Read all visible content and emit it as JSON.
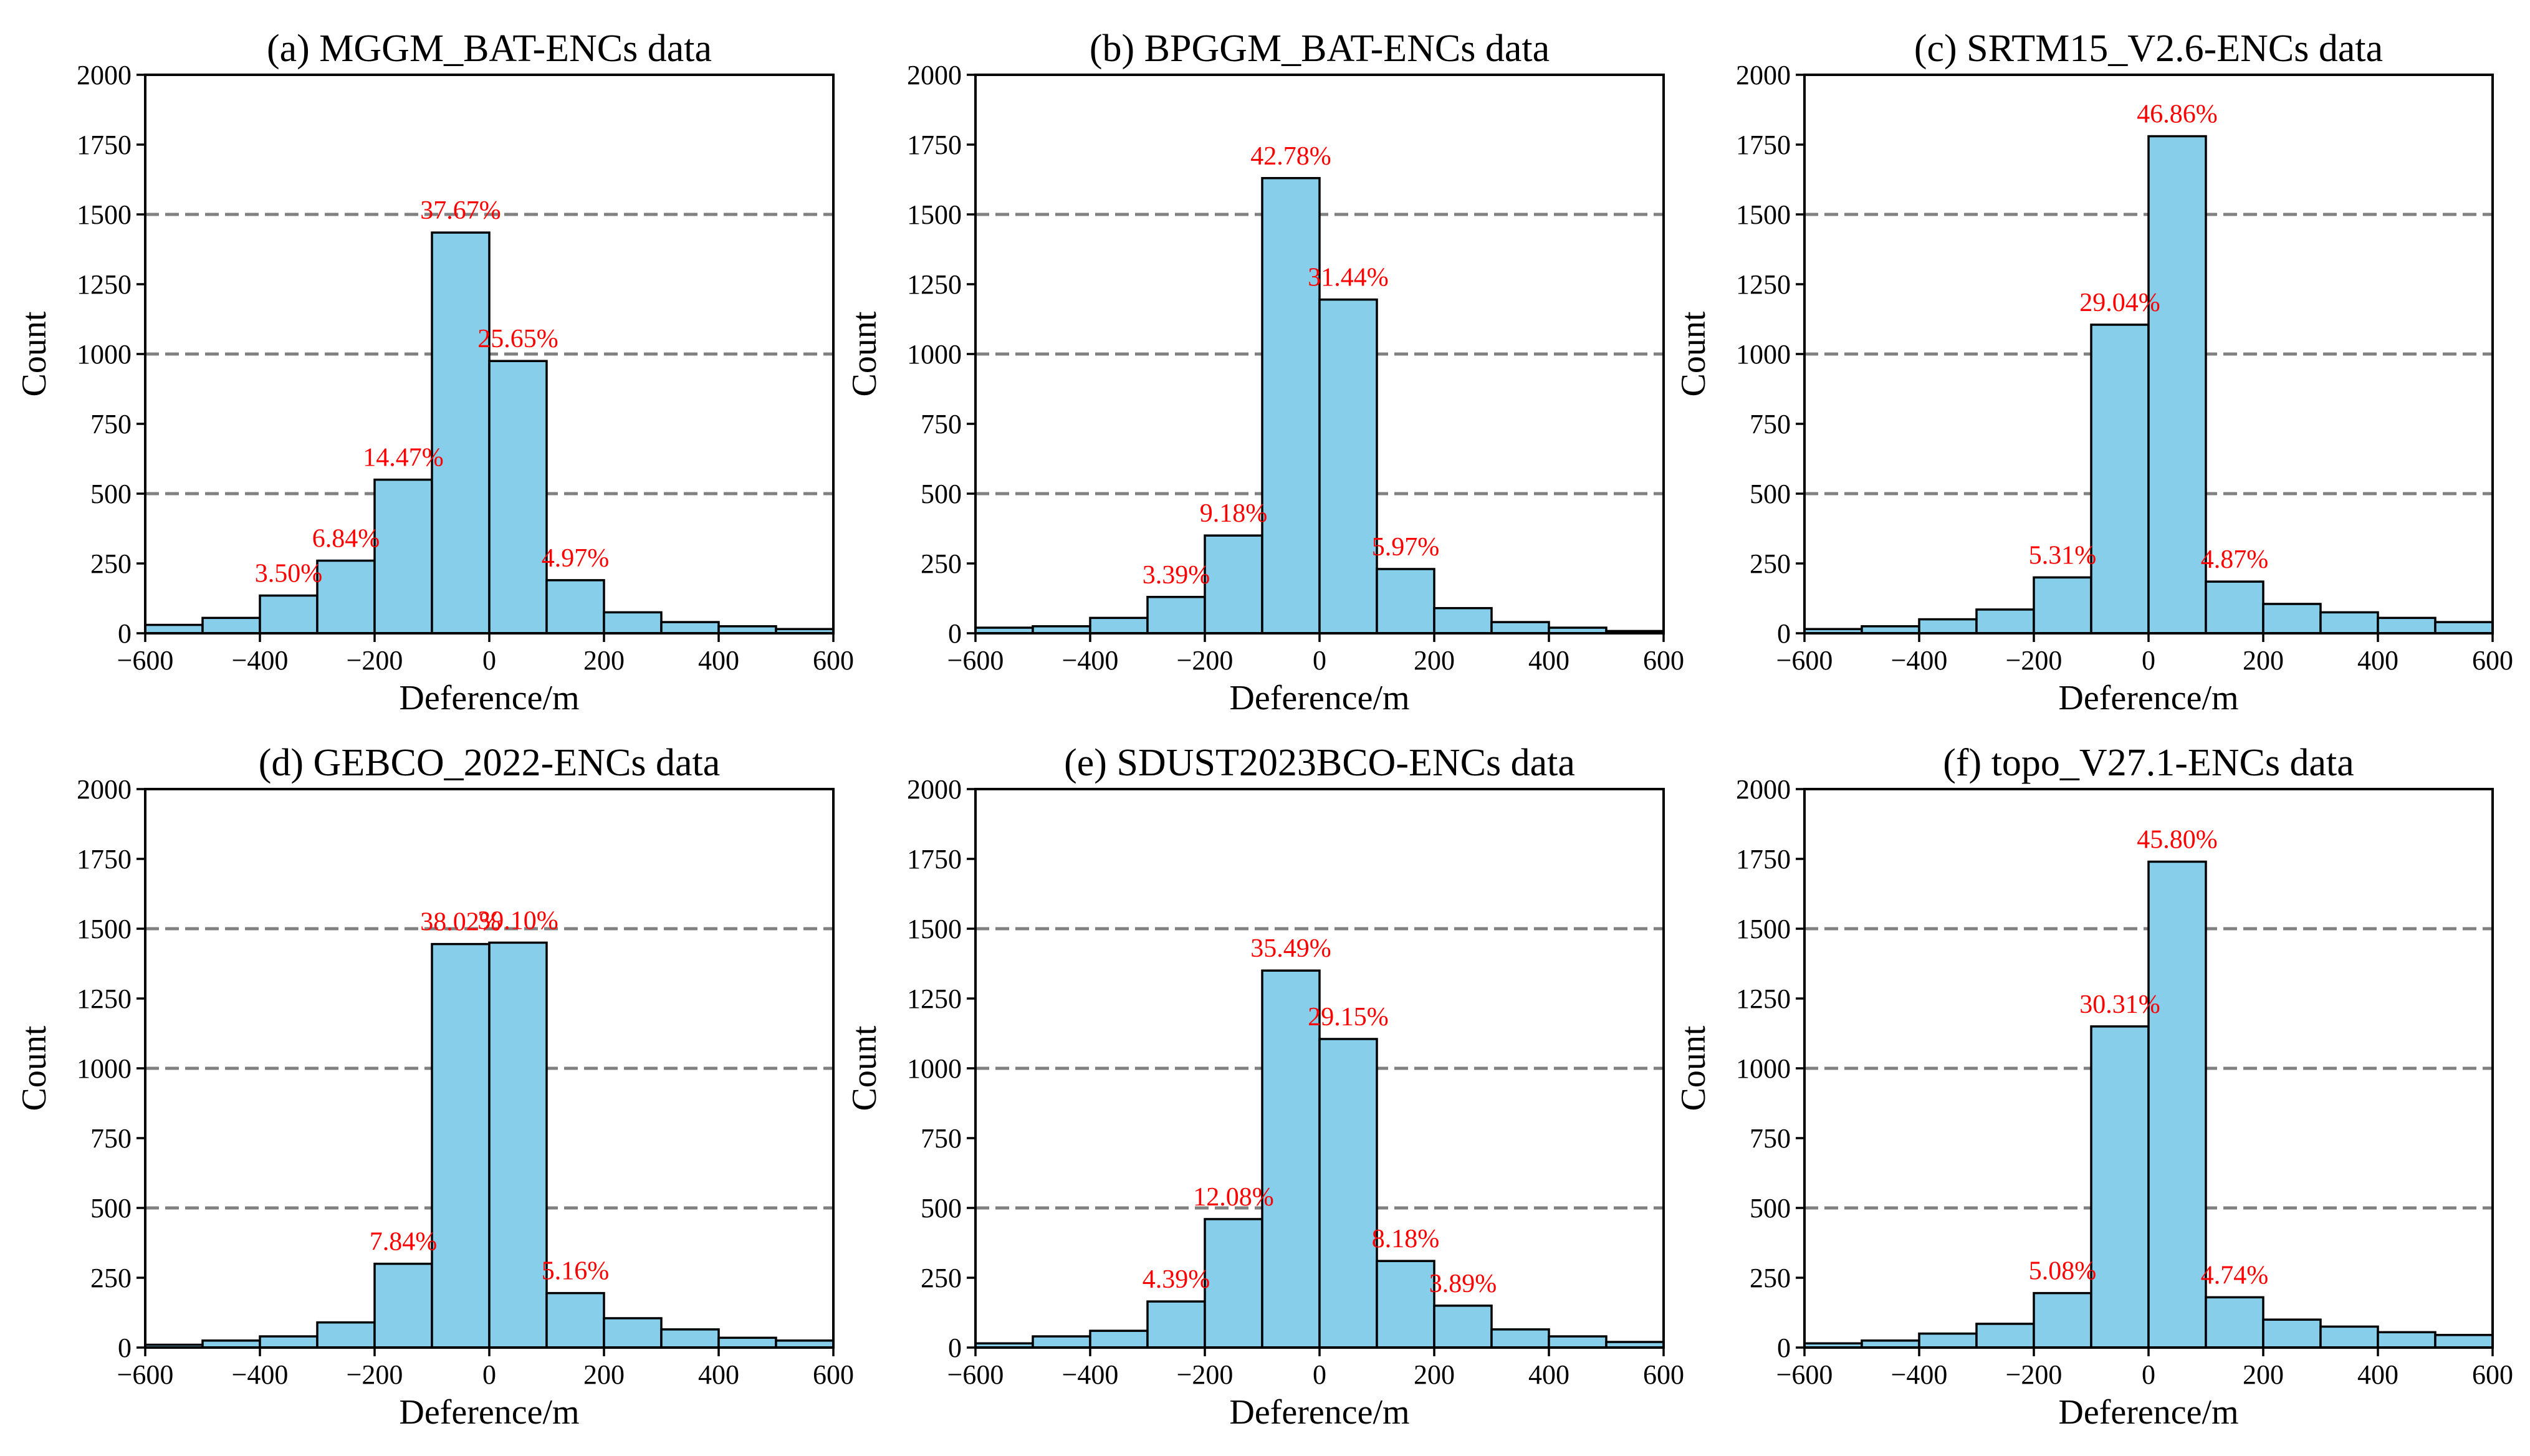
{
  "chart_data": [
    {
      "type": "bar",
      "title": "(a) MGGM_BAT-ENCs data",
      "xlabel": "Deference/m",
      "ylabel": "Count",
      "xlim": [
        -600,
        600
      ],
      "ylim": [
        0,
        2000
      ],
      "xticks": [
        "−600",
        "−400",
        "−200",
        "0",
        "200",
        "400",
        "600"
      ],
      "yticks": [
        "0",
        "250",
        "500",
        "750",
        "1000",
        "1250",
        "1500",
        "1750",
        "2000"
      ],
      "gridlines": [
        500,
        1000,
        1500
      ],
      "bin_edges": [
        -600,
        -500,
        -400,
        -300,
        -200,
        -100,
        0,
        100,
        200,
        300,
        400,
        500,
        600
      ],
      "values": [
        30,
        55,
        135,
        260,
        550,
        1435,
        975,
        190,
        75,
        40,
        25,
        15
      ],
      "annotations": [
        {
          "bin": 2,
          "text": "3.50%"
        },
        {
          "bin": 3,
          "text": "6.84%"
        },
        {
          "bin": 4,
          "text": "14.47%"
        },
        {
          "bin": 5,
          "text": "37.67%"
        },
        {
          "bin": 6,
          "text": "25.65%"
        },
        {
          "bin": 7,
          "text": "4.97%"
        }
      ]
    },
    {
      "type": "bar",
      "title": "(b) BPGGM_BAT-ENCs data",
      "xlabel": "Deference/m",
      "ylabel": "Count",
      "xlim": [
        -600,
        600
      ],
      "ylim": [
        0,
        2000
      ],
      "xticks": [
        "−600",
        "−400",
        "−200",
        "0",
        "200",
        "400",
        "600"
      ],
      "yticks": [
        "0",
        "250",
        "500",
        "750",
        "1000",
        "1250",
        "1500",
        "1750",
        "2000"
      ],
      "gridlines": [
        500,
        1000,
        1500
      ],
      "bin_edges": [
        -600,
        -500,
        -400,
        -300,
        -200,
        -100,
        0,
        100,
        200,
        300,
        400,
        500,
        600
      ],
      "values": [
        20,
        25,
        55,
        130,
        350,
        1630,
        1195,
        230,
        90,
        40,
        20,
        8
      ],
      "annotations": [
        {
          "bin": 3,
          "text": "3.39%"
        },
        {
          "bin": 4,
          "text": "9.18%"
        },
        {
          "bin": 5,
          "text": "42.78%"
        },
        {
          "bin": 6,
          "text": "31.44%"
        },
        {
          "bin": 7,
          "text": "5.97%"
        }
      ]
    },
    {
      "type": "bar",
      "title": "(c) SRTM15_V2.6-ENCs data",
      "xlabel": "Deference/m",
      "ylabel": "Count",
      "xlim": [
        -600,
        600
      ],
      "ylim": [
        0,
        2000
      ],
      "xticks": [
        "−600",
        "−400",
        "−200",
        "0",
        "200",
        "400",
        "600"
      ],
      "yticks": [
        "0",
        "250",
        "500",
        "750",
        "1000",
        "1250",
        "1500",
        "1750",
        "2000"
      ],
      "gridlines": [
        500,
        1000,
        1500
      ],
      "bin_edges": [
        -600,
        -500,
        -400,
        -300,
        -200,
        -100,
        0,
        100,
        200,
        300,
        400,
        500,
        600
      ],
      "values": [
        15,
        25,
        50,
        85,
        200,
        1105,
        1780,
        185,
        105,
        75,
        55,
        40
      ],
      "annotations": [
        {
          "bin": 4,
          "text": "5.31%"
        },
        {
          "bin": 5,
          "text": "29.04%"
        },
        {
          "bin": 6,
          "text": "46.86%"
        },
        {
          "bin": 7,
          "text": "4.87%"
        }
      ]
    },
    {
      "type": "bar",
      "title": "(d) GEBCO_2022-ENCs data",
      "xlabel": "Deference/m",
      "ylabel": "Count",
      "xlim": [
        -600,
        600
      ],
      "ylim": [
        0,
        2000
      ],
      "xticks": [
        "−600",
        "−400",
        "−200",
        "0",
        "200",
        "400",
        "600"
      ],
      "yticks": [
        "0",
        "250",
        "500",
        "750",
        "1000",
        "1250",
        "1500",
        "1750",
        "2000"
      ],
      "gridlines": [
        500,
        1000,
        1500
      ],
      "bin_edges": [
        -600,
        -500,
        -400,
        -300,
        -200,
        -100,
        0,
        100,
        200,
        300,
        400,
        500,
        600
      ],
      "values": [
        10,
        25,
        40,
        90,
        300,
        1445,
        1450,
        195,
        105,
        65,
        35,
        25
      ],
      "annotations": [
        {
          "bin": 4,
          "text": "7.84%"
        },
        {
          "bin": 5,
          "text": "38.02%"
        },
        {
          "bin": 6,
          "text": "39.10%"
        },
        {
          "bin": 7,
          "text": "5.16%"
        }
      ]
    },
    {
      "type": "bar",
      "title": "(e) SDUST2023BCO-ENCs data",
      "xlabel": "Deference/m",
      "ylabel": "Count",
      "xlim": [
        -600,
        600
      ],
      "ylim": [
        0,
        2000
      ],
      "xticks": [
        "−600",
        "−400",
        "−200",
        "0",
        "200",
        "400",
        "600"
      ],
      "yticks": [
        "0",
        "250",
        "500",
        "750",
        "1000",
        "1250",
        "1500",
        "1750",
        "2000"
      ],
      "gridlines": [
        500,
        1000,
        1500
      ],
      "bin_edges": [
        -600,
        -500,
        -400,
        -300,
        -200,
        -100,
        0,
        100,
        200,
        300,
        400,
        500,
        600
      ],
      "values": [
        15,
        40,
        60,
        165,
        460,
        1350,
        1105,
        310,
        150,
        65,
        40,
        20
      ],
      "annotations": [
        {
          "bin": 3,
          "text": "4.39%"
        },
        {
          "bin": 4,
          "text": "12.08%"
        },
        {
          "bin": 5,
          "text": "35.49%"
        },
        {
          "bin": 6,
          "text": "29.15%"
        },
        {
          "bin": 7,
          "text": "8.18%"
        },
        {
          "bin": 8,
          "text": "3.89%"
        }
      ]
    },
    {
      "type": "bar",
      "title": "(f) topo_V27.1-ENCs data",
      "xlabel": "Deference/m",
      "ylabel": "Count",
      "xlim": [
        -600,
        600
      ],
      "ylim": [
        0,
        2000
      ],
      "xticks": [
        "−600",
        "−400",
        "−200",
        "0",
        "200",
        "400",
        "600"
      ],
      "yticks": [
        "0",
        "250",
        "500",
        "750",
        "1000",
        "1250",
        "1500",
        "1750",
        "2000"
      ],
      "gridlines": [
        500,
        1000,
        1500
      ],
      "bin_edges": [
        -600,
        -500,
        -400,
        -300,
        -200,
        -100,
        0,
        100,
        200,
        300,
        400,
        500,
        600
      ],
      "values": [
        15,
        25,
        50,
        85,
        195,
        1150,
        1740,
        180,
        100,
        75,
        55,
        45
      ],
      "annotations": [
        {
          "bin": 4,
          "text": "5.08%"
        },
        {
          "bin": 5,
          "text": "30.31%"
        },
        {
          "bin": 6,
          "text": "45.80%"
        },
        {
          "bin": 7,
          "text": "4.74%"
        }
      ]
    }
  ],
  "colors": {
    "bar_fill": "#87CEEB",
    "bar_edge": "#000000",
    "annotation": "#FF0000",
    "gridline": "#808080",
    "axis": "#000000"
  }
}
